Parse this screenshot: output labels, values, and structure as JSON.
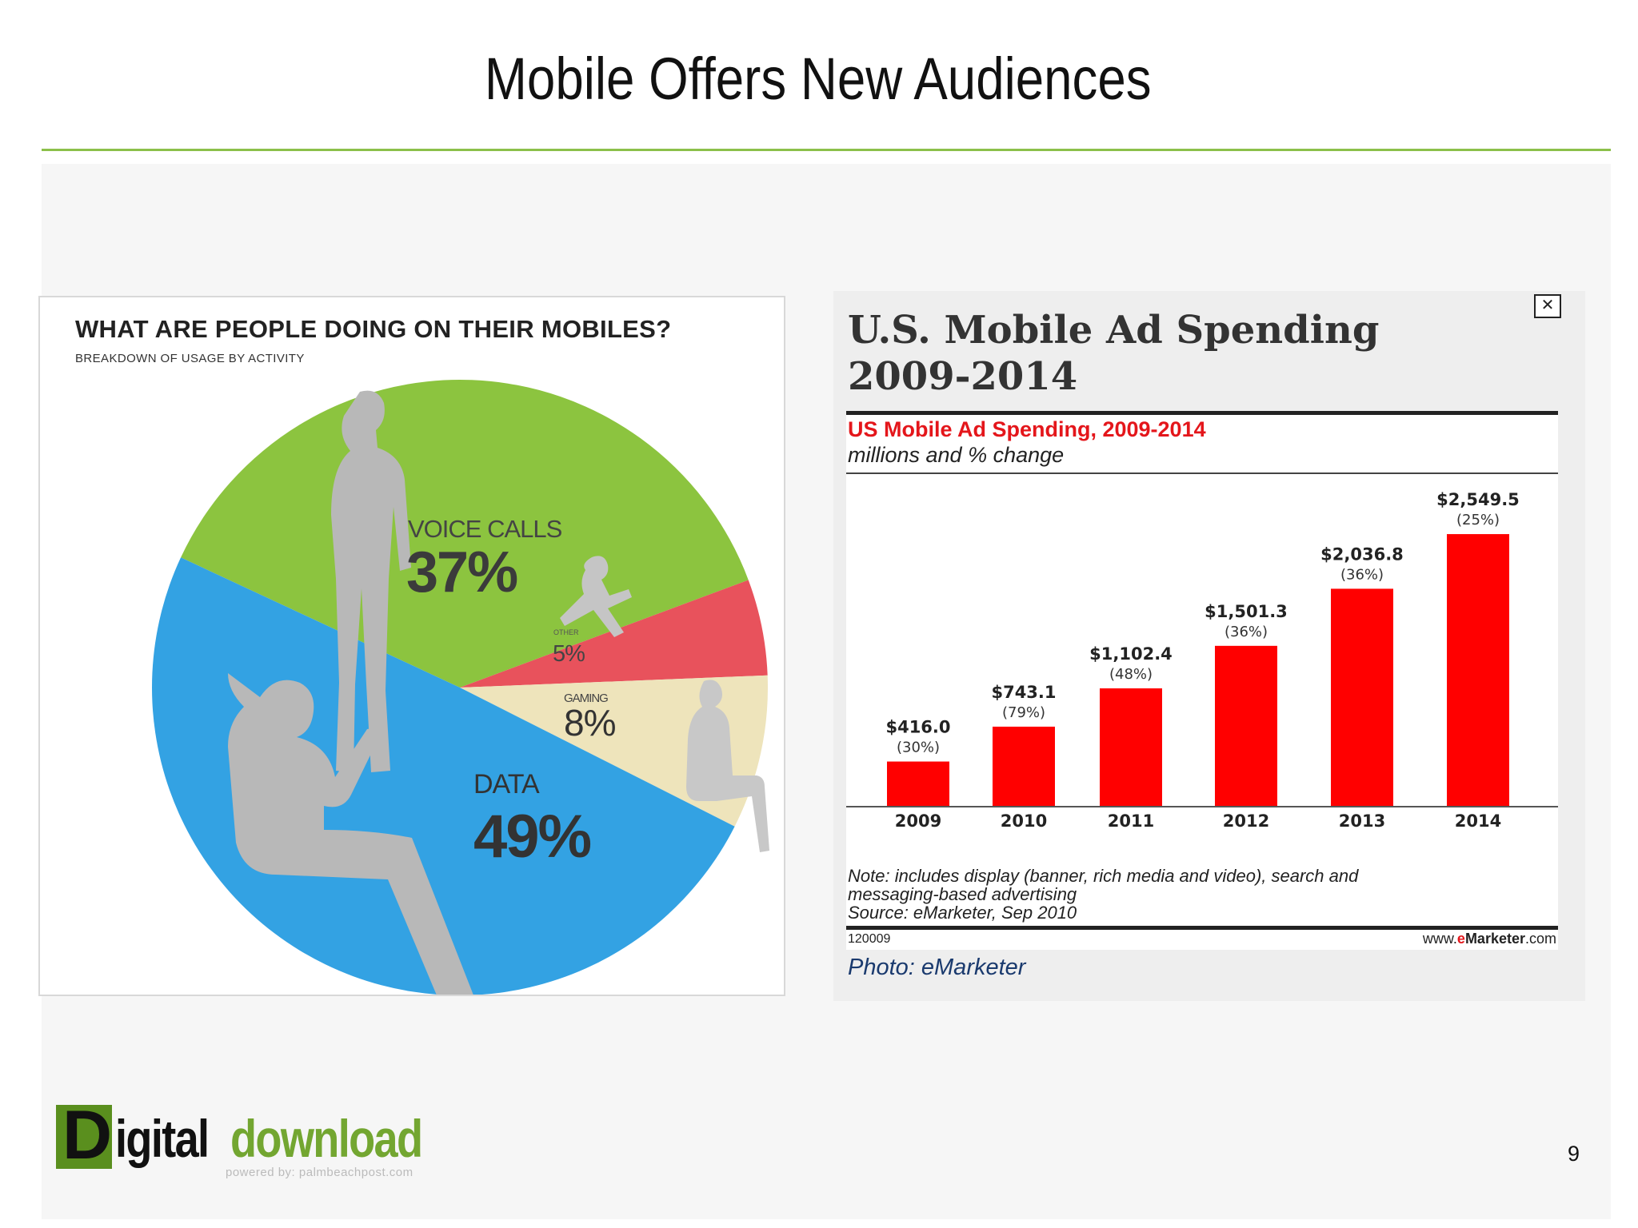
{
  "slide": {
    "title": "Mobile Offers New Audiences",
    "page_number": "9"
  },
  "colors": {
    "title_rule": "#8cc04a",
    "voice": "#8cc43f",
    "other": "#e8525c",
    "gaming": "#eee4bb",
    "data": "#33a2e3",
    "bar": "#ff0000"
  },
  "left_chart": {
    "title": "WHAT ARE PEOPLE DOING ON THEIR MOBILES?",
    "subtitle": "BREAKDOWN OF USAGE BY ACTIVITY"
  },
  "right_chart": {
    "panel_title_line1": "U.S. Mobile Ad Spending",
    "panel_title_line2": "2009-2014",
    "chart_title": "US Mobile Ad Spending, 2009-2014",
    "chart_subtitle": "millions and % change",
    "note_line1": "Note: includes display (banner, rich media and video), search and",
    "note_line2": "messaging-based advertising",
    "source": "Source: eMarketer, Sep 2010",
    "code": "120009",
    "site_prefix": "www.",
    "site_brand_e": "e",
    "site_brand_rest": "Marketer",
    "site_suffix": ".com",
    "photo_credit": "Photo: eMarketer",
    "close_icon": "close-box-icon"
  },
  "logo": {
    "letter": "D",
    "word1": "igital",
    "word2": "download",
    "tagline": "powered by: palmbeachpost.com"
  },
  "chart_data": [
    {
      "type": "pie",
      "title": "WHAT ARE PEOPLE DOING ON THEIR MOBILES?",
      "subtitle": "BREAKDOWN OF USAGE BY ACTIVITY",
      "slices": [
        {
          "label": "VOICE CALLS",
          "value": 37,
          "display": "37%",
          "color": "#8cc43f"
        },
        {
          "label": "OTHER",
          "value": 5,
          "display": "5%",
          "color": "#e8525c"
        },
        {
          "label": "GAMING",
          "value": 8,
          "display": "8%",
          "color": "#eee4bb"
        },
        {
          "label": "DATA",
          "value": 49,
          "display": "49%",
          "color": "#33a2e3"
        }
      ]
    },
    {
      "type": "bar",
      "title": "US Mobile Ad Spending, 2009-2014",
      "subtitle": "millions and % change",
      "categories": [
        "2009",
        "2010",
        "2011",
        "2012",
        "2013",
        "2014"
      ],
      "values": [
        416.0,
        743.1,
        1102.4,
        1501.3,
        2036.8,
        2549.5
      ],
      "value_labels": [
        "$416.0",
        "$743.1",
        "$1,102.4",
        "$1,501.3",
        "$2,036.8",
        "$2,549.5"
      ],
      "change_labels": [
        "(30%)",
        "(79%)",
        "(48%)",
        "(36%)",
        "(36%)",
        "(25%)"
      ],
      "ylim": [
        0,
        2700
      ],
      "grid": false,
      "color": "#ff0000"
    }
  ]
}
